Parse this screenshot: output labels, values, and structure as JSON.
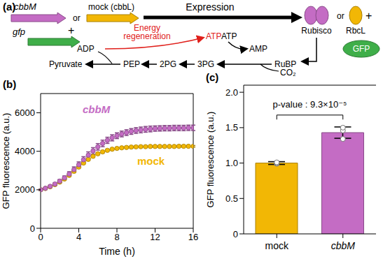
{
  "diagram": {
    "label": "(a)",
    "cbbM": "cbbM",
    "or1": "or",
    "mock": "mock (cbbL)",
    "plus1": "+",
    "gfp": "gfp",
    "expression": "Expression",
    "energy1": "Energy",
    "energy2": "regeneration",
    "atp_red": "ATP",
    "atp": "ATP",
    "adp": "ADP",
    "amp": "AMP",
    "rubisco": "Rubisco",
    "or2": "or",
    "rbcl": "RbcL",
    "plus2": "+",
    "gfp_protein": "GFP",
    "pyruvate": "Pyruvate",
    "pep": "PEP",
    "pg2": "2PG",
    "pg3": "3PG",
    "rubp": "RuBP",
    "co2": "CO₂"
  },
  "chart_data": [
    {
      "type": "line",
      "title": "(b)",
      "x_label": "Time (h)",
      "y_label": "GFP fluorescence (a.u.)",
      "x": [
        0,
        0.5,
        1,
        1.5,
        2,
        2.5,
        3,
        3.5,
        4,
        4.5,
        5,
        5.5,
        6,
        6.5,
        7,
        7.5,
        8,
        8.5,
        9,
        9.5,
        10,
        10.5,
        11,
        11.5,
        12,
        12.5,
        13,
        13.5,
        14,
        14.5,
        15,
        15.5,
        16
      ],
      "xlim": [
        0,
        16
      ],
      "xticks": [
        0,
        4,
        8,
        12,
        16
      ],
      "ylim": [
        0,
        7000
      ],
      "yticks": [
        0,
        2000,
        4000,
        6000
      ],
      "series": [
        {
          "name": "cbbM",
          "color": "#c46cc4",
          "marker": "circle",
          "values": [
            2000,
            2080,
            2180,
            2300,
            2450,
            2620,
            2820,
            3050,
            3300,
            3560,
            3800,
            4020,
            4230,
            4410,
            4570,
            4700,
            4810,
            4900,
            4970,
            5030,
            5080,
            5110,
            5140,
            5160,
            5180,
            5190,
            5200,
            5200,
            5210,
            5210,
            5210,
            5220,
            5220
          ],
          "errors": [
            30,
            40,
            50,
            60,
            80,
            100,
            120,
            140,
            150,
            160,
            170,
            170,
            170,
            170,
            160,
            160,
            150,
            150,
            150,
            150,
            150,
            150,
            150,
            150,
            140,
            140,
            140,
            140,
            140,
            140,
            140,
            140,
            140
          ]
        },
        {
          "name": "mock",
          "color": "#f2b705",
          "marker": "circle",
          "values": [
            2000,
            2070,
            2160,
            2270,
            2400,
            2560,
            2750,
            2960,
            3180,
            3390,
            3580,
            3740,
            3870,
            3970,
            4050,
            4110,
            4150,
            4180,
            4200,
            4220,
            4230,
            4240,
            4240,
            4250,
            4250,
            4250,
            4250,
            4250,
            4250,
            4260,
            4260,
            4260,
            4260
          ],
          "errors": [
            40,
            40,
            40,
            40,
            40,
            40,
            40,
            40,
            40,
            40,
            40,
            40,
            40,
            40,
            40,
            40,
            40,
            40,
            40,
            40,
            40,
            40,
            40,
            40,
            40,
            40,
            40,
            40,
            40,
            40,
            40,
            40,
            40
          ]
        }
      ]
    },
    {
      "type": "bar",
      "title": "(c)",
      "y_label": "GFP fluorescence (a.u.)",
      "categories": [
        "mock",
        "cbbM"
      ],
      "values": [
        1.0,
        1.43
      ],
      "errors": [
        0.02,
        0.08
      ],
      "points": [
        [
          0.99,
          1.0,
          1.01
        ],
        [
          1.34,
          1.46,
          1.5
        ]
      ],
      "colors": [
        "#f2b705",
        "#c46cc4"
      ],
      "ylim": [
        0,
        2.1
      ],
      "yticks": [
        0,
        0.5,
        {
          "value": 1,
          "label": "1.0"
        },
        1.5,
        {
          "value": 2,
          "label": "2.0"
        }
      ],
      "annotation": "p-value : 9.3×10⁻⁵"
    }
  ]
}
